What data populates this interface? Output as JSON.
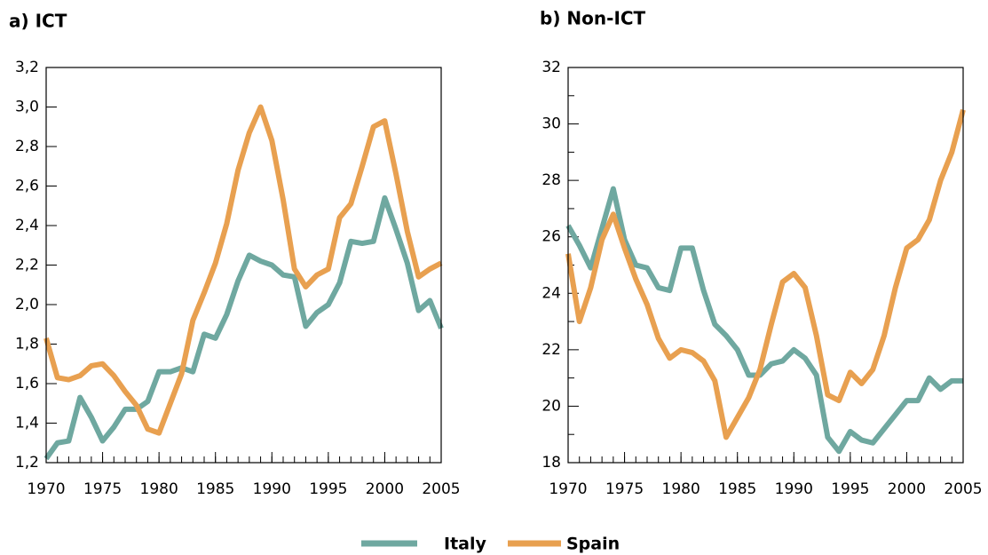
{
  "chart_data": [
    {
      "type": "line",
      "title": "a) ICT",
      "x": [
        1970,
        1971,
        1972,
        1973,
        1974,
        1975,
        1976,
        1977,
        1978,
        1979,
        1980,
        1981,
        1982,
        1983,
        1984,
        1985,
        1986,
        1987,
        1988,
        1989,
        1990,
        1991,
        1992,
        1993,
        1994,
        1995,
        1996,
        1997,
        1998,
        1999,
        2000,
        2001,
        2002,
        2003,
        2004,
        2005
      ],
      "xlim": [
        1970,
        2005
      ],
      "xticks": [
        1970,
        1975,
        1980,
        1985,
        1990,
        1995,
        2000,
        2005
      ],
      "ylim": [
        1.2,
        3.2
      ],
      "yticks": [
        {
          "value": 1.2,
          "label": "1,2"
        },
        {
          "value": 1.4,
          "label": "1,4"
        },
        {
          "value": 1.6,
          "label": "1,6"
        },
        {
          "value": 1.8,
          "label": "1,8"
        },
        {
          "value": 2.0,
          "label": "2,0"
        },
        {
          "value": 2.2,
          "label": "2,2"
        },
        {
          "value": 2.4,
          "label": "2,4"
        },
        {
          "value": 2.6,
          "label": "2,6"
        },
        {
          "value": 2.8,
          "label": "2,8"
        },
        {
          "value": 3.0,
          "label": "3,0"
        },
        {
          "value": 3.2,
          "label": "3,2"
        }
      ],
      "series": [
        {
          "name": "Italy",
          "color": "#6fa8a0",
          "values": [
            1.22,
            1.3,
            1.31,
            1.53,
            1.43,
            1.31,
            1.38,
            1.47,
            1.47,
            1.51,
            1.66,
            1.66,
            1.68,
            1.66,
            1.85,
            1.83,
            1.95,
            2.12,
            2.25,
            2.22,
            2.2,
            2.15,
            2.14,
            1.89,
            1.96,
            2.0,
            2.11,
            2.32,
            2.31,
            2.32,
            2.54,
            2.38,
            2.21,
            1.97,
            2.02,
            1.88
          ]
        },
        {
          "name": "Spain",
          "color": "#e8a050",
          "values": [
            1.83,
            1.63,
            1.62,
            1.64,
            1.69,
            1.7,
            1.64,
            1.56,
            1.49,
            1.37,
            1.35,
            1.5,
            1.65,
            1.92,
            2.06,
            2.21,
            2.41,
            2.68,
            2.87,
            3.0,
            2.83,
            2.53,
            2.18,
            2.09,
            2.15,
            2.18,
            2.44,
            2.51,
            2.7,
            2.9,
            2.93,
            2.66,
            2.37,
            2.14,
            2.18,
            2.21
          ]
        }
      ]
    },
    {
      "type": "line",
      "title": "b) Non-ICT",
      "x": [
        1970,
        1971,
        1972,
        1973,
        1974,
        1975,
        1976,
        1977,
        1978,
        1979,
        1980,
        1981,
        1982,
        1983,
        1984,
        1985,
        1986,
        1987,
        1988,
        1989,
        1990,
        1991,
        1992,
        1993,
        1994,
        1995,
        1996,
        1997,
        1998,
        1999,
        2000,
        2001,
        2002,
        2003,
        2004,
        2005
      ],
      "xlim": [
        1970,
        2005
      ],
      "xticks": [
        1970,
        1975,
        1980,
        1985,
        1990,
        1995,
        2000,
        2005
      ],
      "ylim": [
        18,
        32
      ],
      "yticks": [
        18,
        20,
        22,
        24,
        26,
        28,
        30,
        32
      ],
      "minor_yticks": true,
      "series": [
        {
          "name": "Italy",
          "color": "#6fa8a0",
          "values": [
            26.4,
            25.7,
            24.9,
            26.3,
            27.7,
            25.9,
            25.0,
            24.9,
            24.2,
            24.1,
            25.6,
            25.6,
            24.1,
            22.9,
            22.5,
            22.0,
            21.1,
            21.1,
            21.5,
            21.6,
            22.0,
            21.7,
            21.1,
            18.9,
            18.4,
            19.1,
            18.8,
            18.7,
            19.2,
            19.7,
            20.2,
            20.2,
            21.0,
            20.6,
            20.9,
            20.9
          ]
        },
        {
          "name": "Spain",
          "color": "#e8a050",
          "values": [
            25.4,
            23.0,
            24.2,
            25.9,
            26.8,
            25.6,
            24.5,
            23.6,
            22.4,
            21.7,
            22.0,
            21.9,
            21.6,
            20.9,
            18.9,
            19.6,
            20.3,
            21.3,
            22.9,
            24.4,
            24.7,
            24.2,
            22.5,
            20.4,
            20.2,
            21.2,
            20.8,
            21.3,
            22.5,
            24.2,
            25.6,
            25.9,
            26.6,
            28.0,
            29.0,
            30.5
          ]
        }
      ]
    }
  ]
}
